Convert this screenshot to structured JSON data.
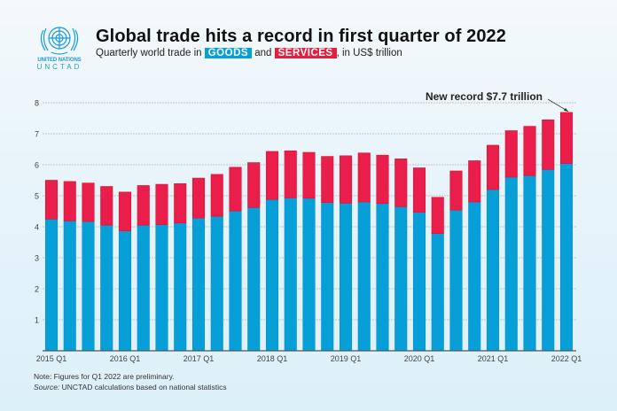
{
  "logo": {
    "line1": "UNITED NATIONS",
    "line2": "UNCTAD"
  },
  "header": {
    "title": "Global trade hits a record in first quarter of 2022",
    "subtitle_prefix": "Quarterly world trade in",
    "goods_tag": "GOODS",
    "and": "and",
    "services_tag": "SERVICES",
    "subtitle_suffix": ", in US$ trillion"
  },
  "footer": {
    "note": "Note: Figures for Q1 2022 are preliminary.",
    "source_label": "Source:",
    "source_text": " UNCTAD calculations based on national statistics"
  },
  "chart_data": {
    "type": "bar",
    "stacked": true,
    "title": "Global trade hits a record in first quarter of 2022",
    "subtitle": "Quarterly world trade in GOODS and SERVICES, in US$ trillion",
    "xlabel": "",
    "ylabel": "",
    "ylim": [
      0,
      8
    ],
    "yticks": [
      1,
      2,
      3,
      4,
      5,
      6,
      7,
      8
    ],
    "grid": true,
    "categories": [
      "2015 Q1",
      "2015 Q2",
      "2015 Q3",
      "2015 Q4",
      "2016 Q1",
      "2016 Q2",
      "2016 Q3",
      "2016 Q4",
      "2017 Q1",
      "2017 Q2",
      "2017 Q3",
      "2017 Q4",
      "2018 Q1",
      "2018 Q2",
      "2018 Q3",
      "2018 Q4",
      "2019 Q1",
      "2019 Q2",
      "2019 Q3",
      "2019 Q4",
      "2020 Q1",
      "2020 Q2",
      "2020 Q3",
      "2020 Q4",
      "2021 Q1",
      "2021 Q2",
      "2021 Q3",
      "2021 Q4",
      "2022 Q1"
    ],
    "xtick_labels": [
      "2015 Q1",
      "2016 Q1",
      "2017 Q1",
      "2018 Q1",
      "2019 Q1",
      "2020 Q1",
      "2021 Q1",
      "2022 Q1"
    ],
    "series": [
      {
        "name": "GOODS",
        "color": "#069fd8",
        "values": [
          4.25,
          4.19,
          4.17,
          4.05,
          3.87,
          4.05,
          4.07,
          4.12,
          4.28,
          4.34,
          4.51,
          4.62,
          4.88,
          4.93,
          4.92,
          4.78,
          4.76,
          4.8,
          4.75,
          4.65,
          4.47,
          3.78,
          4.54,
          4.8,
          5.2,
          5.6,
          5.65,
          5.85,
          6.04
        ]
      },
      {
        "name": "SERVICES",
        "color": "#e91e4b",
        "values": [
          1.25,
          1.27,
          1.24,
          1.25,
          1.25,
          1.28,
          1.3,
          1.27,
          1.29,
          1.35,
          1.41,
          1.45,
          1.55,
          1.52,
          1.48,
          1.49,
          1.53,
          1.58,
          1.56,
          1.54,
          1.43,
          1.17,
          1.26,
          1.33,
          1.43,
          1.5,
          1.59,
          1.6,
          1.65
        ]
      }
    ],
    "annotations": [
      {
        "text": "New record $7.7 trillion",
        "target": "2022 Q1"
      }
    ]
  }
}
